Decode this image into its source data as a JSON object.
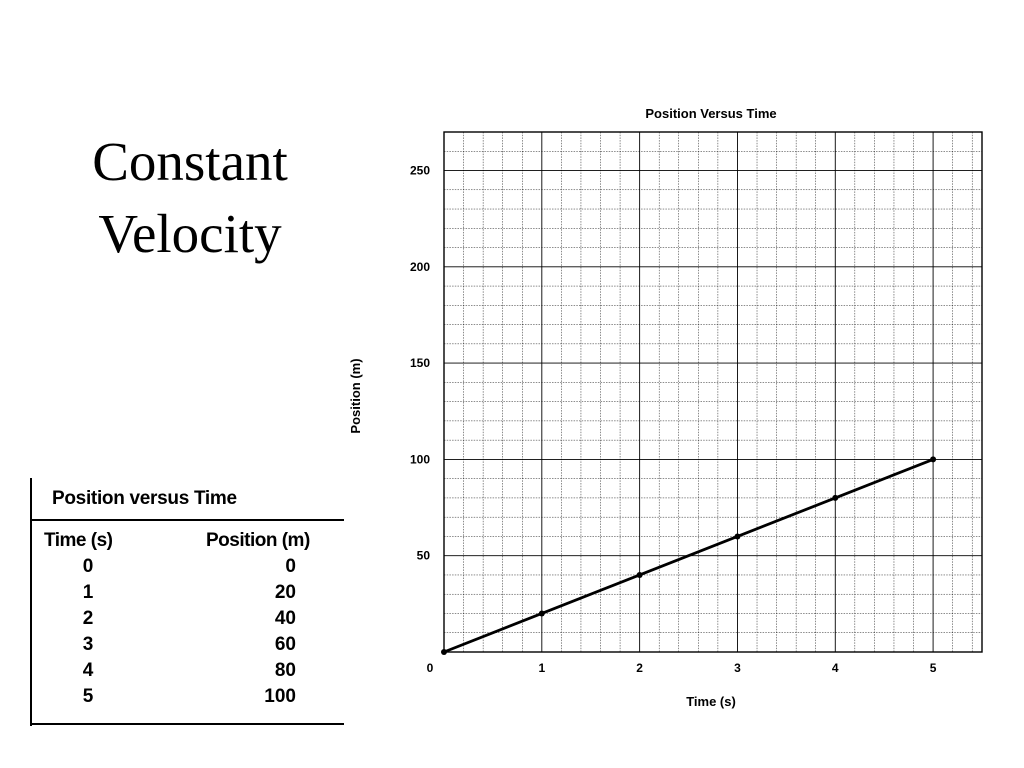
{
  "slide": {
    "title_line1": "Constant",
    "title_line2": "Velocity"
  },
  "table": {
    "title": "Position versus Time",
    "headers": [
      "Time (s)",
      "Position (m)"
    ],
    "rows": [
      {
        "time": "0",
        "position": "0"
      },
      {
        "time": "1",
        "position": "20"
      },
      {
        "time": "2",
        "position": "40"
      },
      {
        "time": "3",
        "position": "60"
      },
      {
        "time": "4",
        "position": "80"
      },
      {
        "time": "5",
        "position": "100"
      }
    ]
  },
  "chart_data": {
    "type": "line",
    "title": "Position Versus Time",
    "xlabel": "Time (s)",
    "ylabel": "Position (m)",
    "xlim": [
      0,
      5.5
    ],
    "ylim": [
      0,
      270
    ],
    "xticks": [
      0,
      1,
      2,
      3,
      4,
      5
    ],
    "yticks": [
      50,
      100,
      150,
      200,
      250
    ],
    "grid": true,
    "series": [
      {
        "x": [
          0,
          1,
          2,
          3,
          4,
          5
        ],
        "y": [
          0,
          20,
          40,
          60,
          80,
          100
        ]
      }
    ]
  }
}
